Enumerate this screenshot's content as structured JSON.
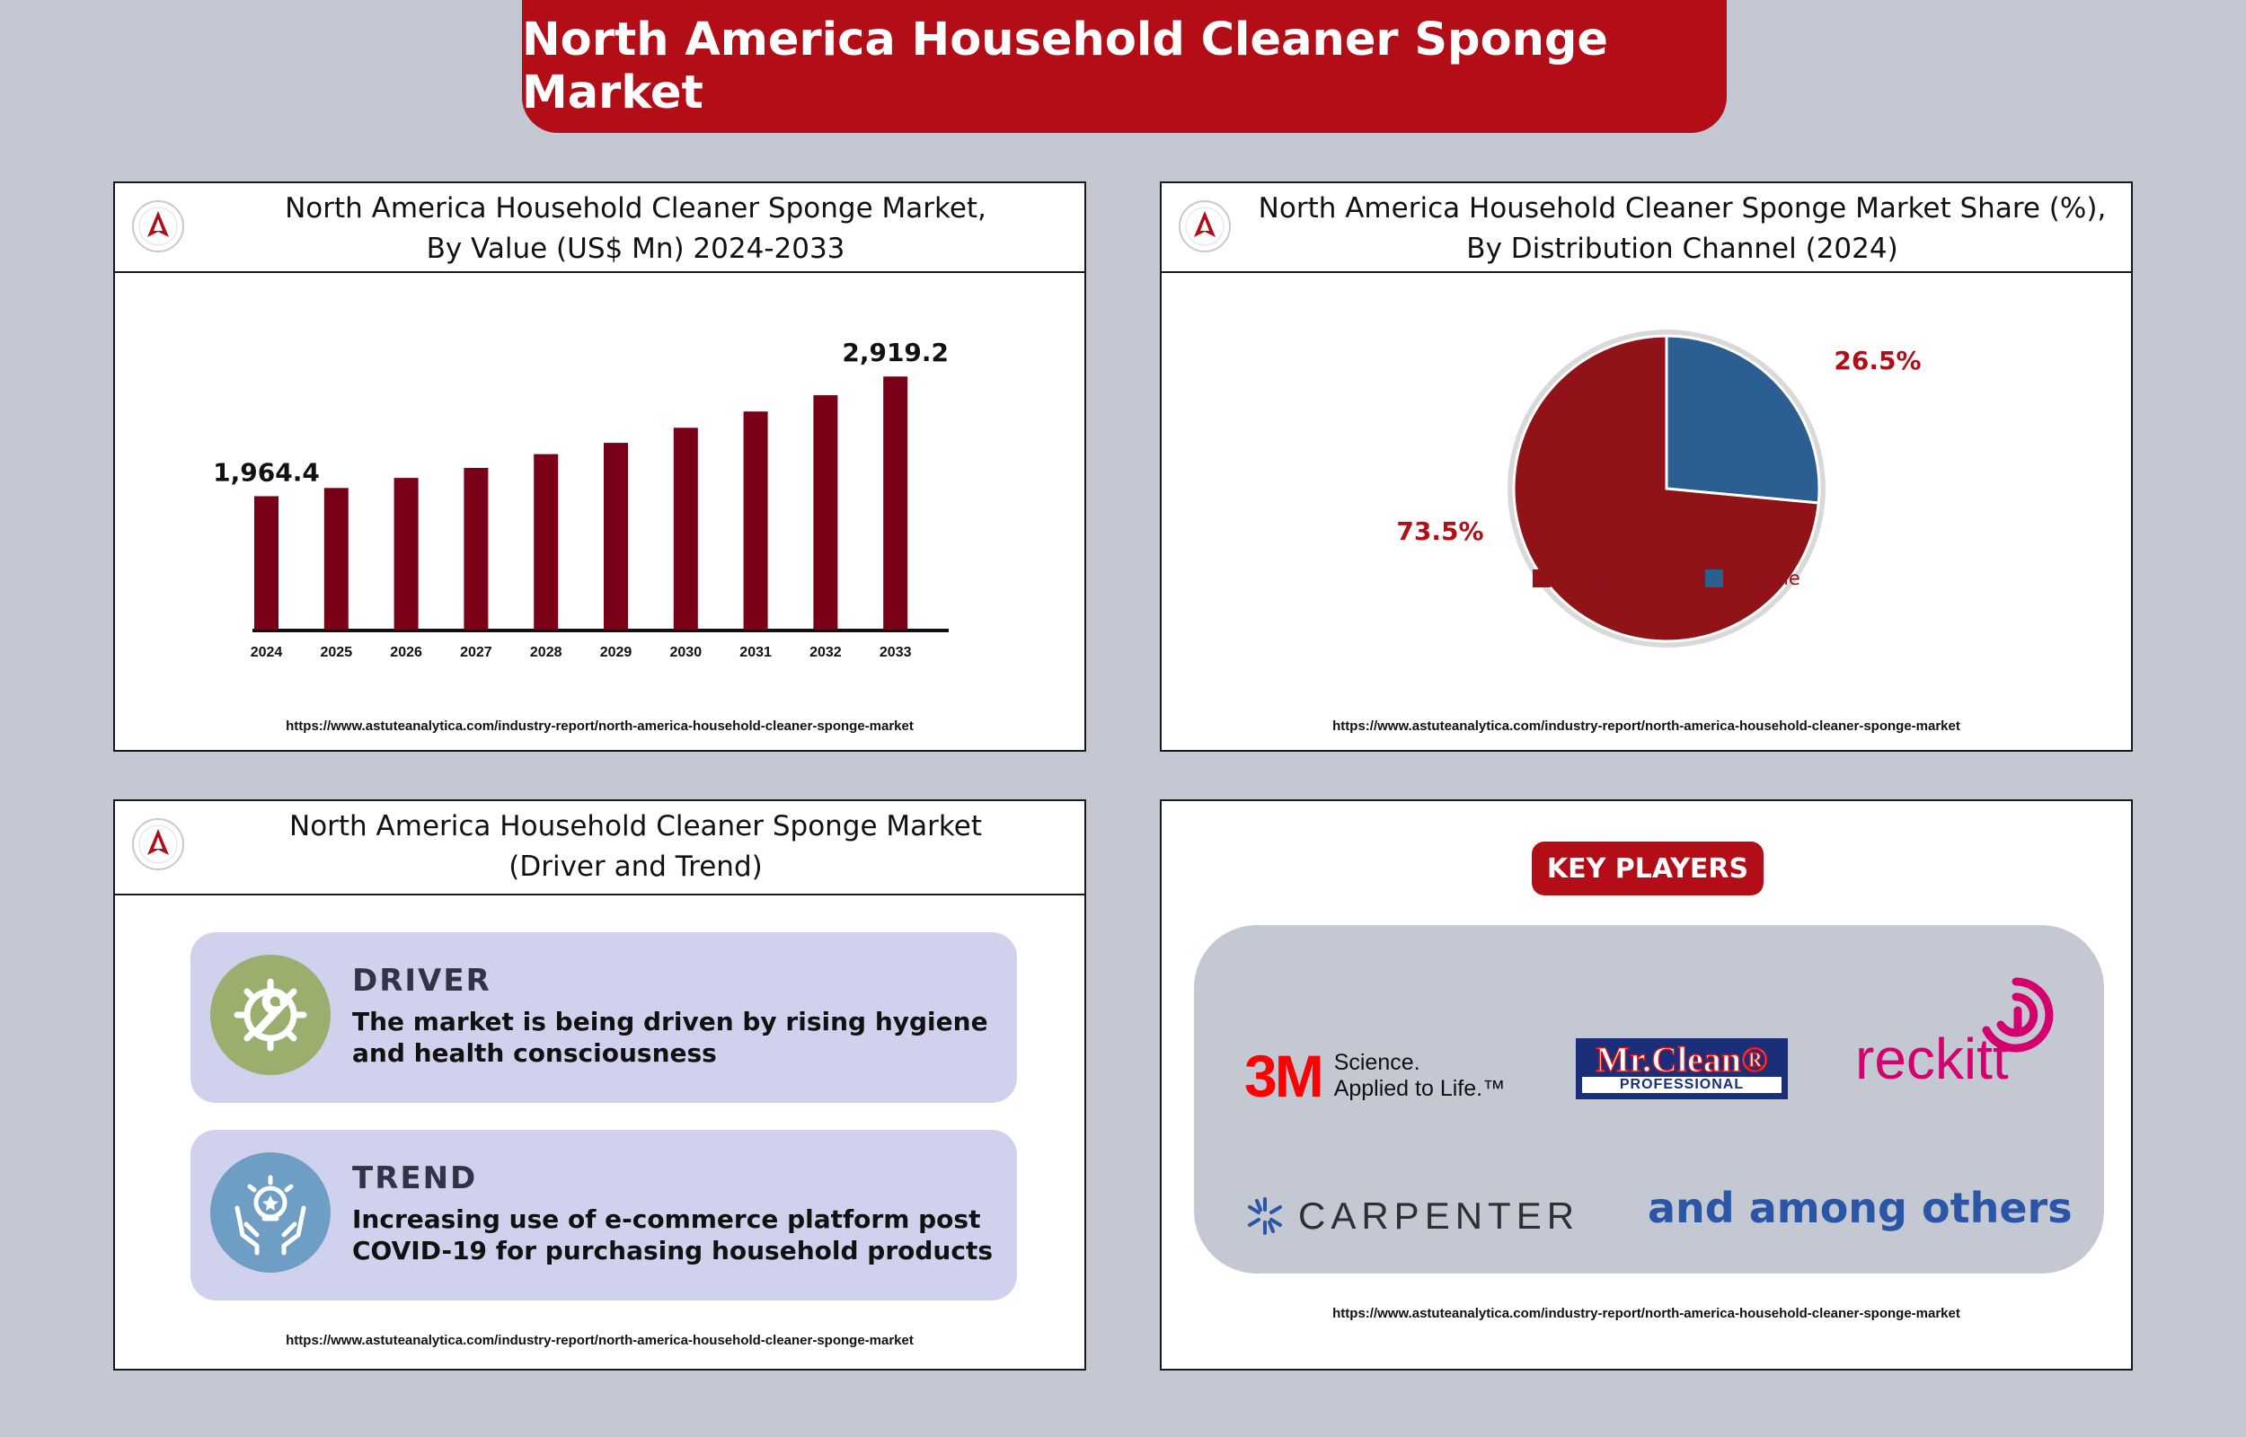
{
  "banner": {
    "title": "North America Household Cleaner Sponge Market"
  },
  "url": "https://www.astuteanalytica.com/industry-report/north-america-household-cleaner-sponge-market",
  "colors": {
    "brand_red": "#b30d17",
    "bar": "#7a0018",
    "offline": "#901318",
    "online": "#2b5e91"
  },
  "bar_panel": {
    "title_line1": "North America Household Cleaner Sponge Market,",
    "title_line2": "By Value (US$ Mn) 2024-2033"
  },
  "pie_panel": {
    "title_line1": "North America Household Cleaner Sponge Market Share (%),",
    "title_line2": "By Distribution Channel (2024)"
  },
  "driver_panel": {
    "title_line1": "North America Household Cleaner Sponge Market",
    "title_line2": "(Driver and Trend)",
    "driver": {
      "title": "DRIVER",
      "text": "The market is being driven by rising hygiene and health consciousness",
      "icon": "gear-wrench-icon"
    },
    "trend": {
      "title": "TREND",
      "text": "Increasing use of e-commerce platform post COVID-19 for purchasing household products",
      "icon": "hands-idea-icon"
    }
  },
  "key_players": {
    "title": "KEY PLAYERS",
    "m3": {
      "logo": "3M",
      "tagline1": "Science.",
      "tagline2": "Applied to Life.™"
    },
    "mrclean": {
      "top": "Mr.Clean®",
      "bottom": "PROFESSIONAL"
    },
    "reckitt": "reckitt",
    "carpenter": "CARPENTER",
    "others": "and among others"
  },
  "chart_data": [
    {
      "type": "bar",
      "categories": [
        "2024",
        "2025",
        "2026",
        "2027",
        "2028",
        "2029",
        "2030",
        "2031",
        "2032",
        "2033"
      ],
      "values": [
        1964.4,
        2030,
        2110,
        2190,
        2300,
        2390,
        2510,
        2640,
        2770,
        2919.2
      ],
      "data_labels": {
        "2024": "1,964.4",
        "2033": "2,919.2"
      },
      "title": "North America Household Cleaner Sponge Market, By Value (US$ Mn) 2024-2033",
      "ylim": [
        900,
        3100
      ]
    },
    {
      "type": "pie",
      "labels": [
        "Offline",
        "Online"
      ],
      "values": [
        73.5,
        26.5
      ],
      "value_labels": [
        "73.5%",
        "26.5%"
      ],
      "colors": [
        "#901318",
        "#2b5e91"
      ],
      "title": "North America Household Cleaner Sponge Market Share (%), By Distribution Channel (2024)",
      "legend": "bottom"
    }
  ]
}
